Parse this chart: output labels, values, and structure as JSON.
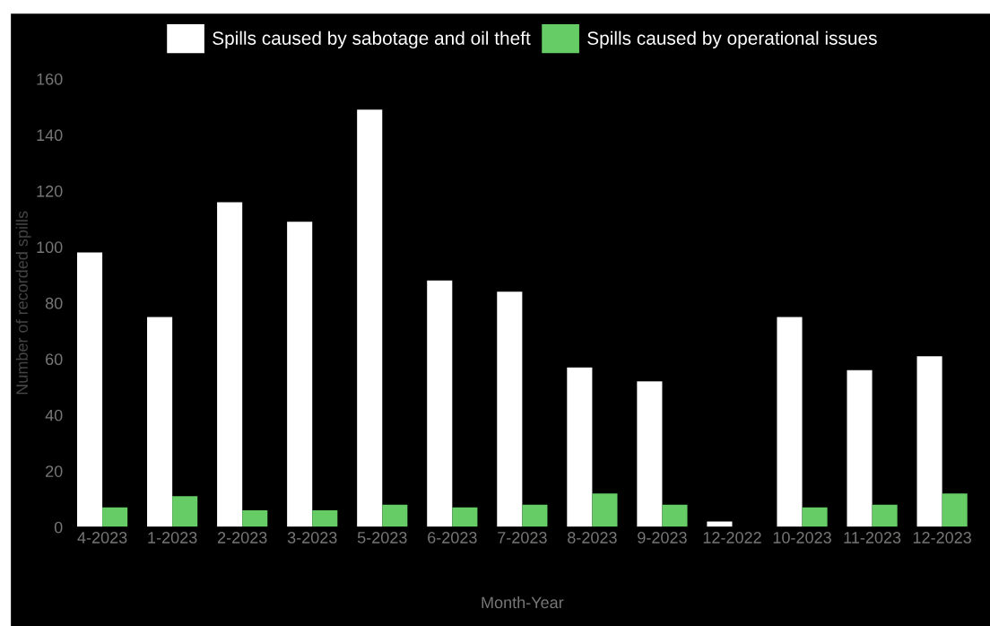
{
  "chart_data": {
    "type": "bar",
    "xlabel": "Month-Year",
    "ylabel": "Number of recorded spills",
    "categories": [
      "4-2023",
      "1-2023",
      "2-2023",
      "3-2023",
      "5-2023",
      "6-2023",
      "7-2023",
      "8-2023",
      "9-2023",
      "12-2022",
      "10-2023",
      "11-2023",
      "12-2023"
    ],
    "series": [
      {
        "name": "Spills caused by sabotage and oil theft",
        "color": "#ffffff",
        "values": [
          98,
          75,
          116,
          109,
          149,
          88,
          84,
          57,
          52,
          2,
          75,
          56,
          61
        ]
      },
      {
        "name": "Spills caused by operational issues",
        "color": "#66cc66",
        "values": [
          7,
          11,
          6,
          6,
          8,
          7,
          8,
          12,
          8,
          null,
          7,
          8,
          12
        ]
      }
    ],
    "ylim": [
      0,
      160
    ],
    "yticks": [
      0,
      20,
      40,
      60,
      80,
      100,
      120,
      140,
      160
    ],
    "grid": false,
    "legend": "top"
  }
}
